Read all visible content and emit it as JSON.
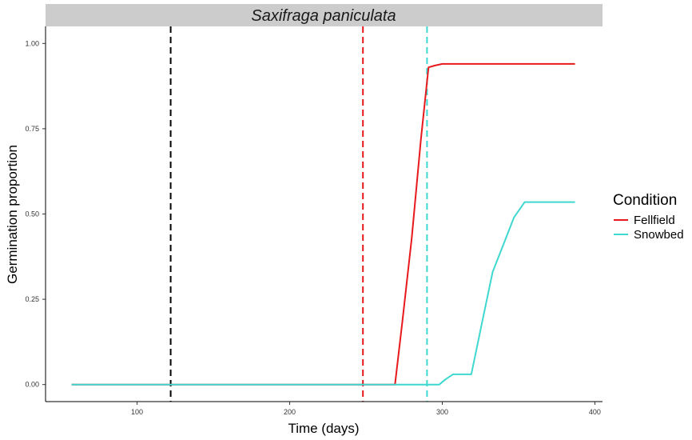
{
  "chart_data": {
    "type": "line",
    "title": "Saxifraga paniculata",
    "xlabel": "Time (days)",
    "ylabel": "Germination proportion",
    "xlim": [
      40,
      405
    ],
    "ylim": [
      -0.05,
      1.05
    ],
    "x_ticks": [
      100,
      200,
      300,
      400
    ],
    "x_tick_labels": [
      "100",
      "200",
      "300",
      "400"
    ],
    "y_ticks": [
      0,
      0.25,
      0.5,
      0.75,
      1.0
    ],
    "y_tick_labels": [
      "0.00",
      "0.25",
      "0.50",
      "0.75",
      "1.00"
    ],
    "grid": false,
    "legend": {
      "title": "Condition",
      "position": "right",
      "entries": [
        "Fellfield",
        "Snowbed"
      ]
    },
    "series": [
      {
        "name": "Fellfield",
        "color": "#e8191c",
        "x": [
          57,
          269,
          274,
          280,
          286,
          291,
          295,
          300,
          387
        ],
        "y": [
          0.0,
          0.0,
          0.19,
          0.43,
          0.72,
          0.93,
          0.935,
          0.94,
          0.94
        ]
      },
      {
        "name": "Snowbed",
        "color": "#3ed8d0",
        "x": [
          57,
          298,
          302,
          307,
          313,
          319,
          326,
          333,
          340,
          347,
          354,
          387
        ],
        "y": [
          0.0,
          0.0,
          0.015,
          0.03,
          0.03,
          0.03,
          0.18,
          0.33,
          0.41,
          0.49,
          0.535,
          0.535
        ]
      }
    ],
    "vlines": [
      {
        "x": 122,
        "color": "#000000"
      },
      {
        "x": 248,
        "color": "#e8191c"
      },
      {
        "x": 290,
        "color": "#3ed8d0"
      }
    ]
  }
}
